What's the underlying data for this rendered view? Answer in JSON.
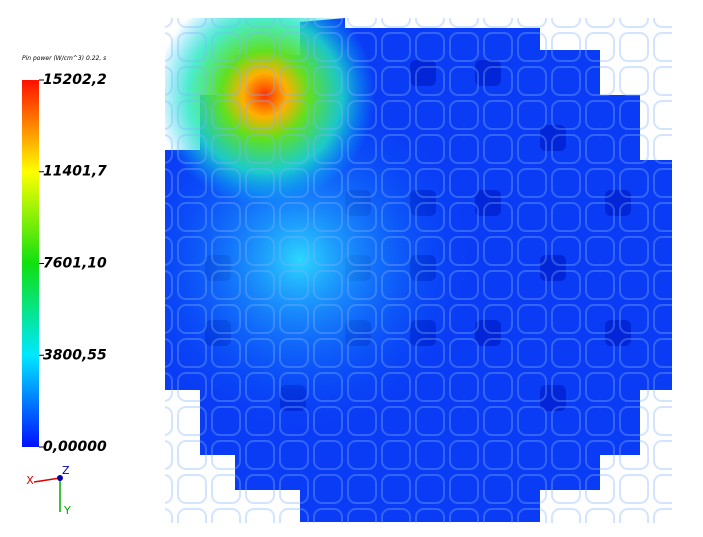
{
  "legend": {
    "title": "Pin power (W/cm^3) 0.22, s",
    "ticks": [
      {
        "value": 15202.2,
        "label": "15202,2"
      },
      {
        "value": 11401.7,
        "label": "11401,7"
      },
      {
        "value": 7601.1,
        "label": "7601,10"
      },
      {
        "value": 3800.55,
        "label": "3800,55"
      },
      {
        "value": 0,
        "label": "0,00000"
      }
    ]
  },
  "axes": {
    "x": "X",
    "y": "Y",
    "z": "Z"
  }
}
